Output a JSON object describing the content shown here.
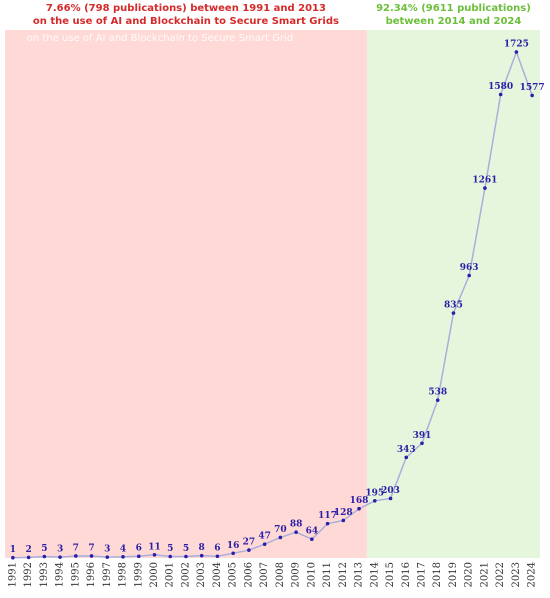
{
  "chart_data": {
    "type": "line",
    "categories": [
      "1991",
      "1992",
      "1993",
      "1994",
      "1995",
      "1996",
      "1997",
      "1998",
      "1999",
      "2000",
      "2001",
      "2002",
      "2003",
      "2004",
      "2005",
      "2006",
      "2007",
      "2008",
      "2009",
      "2010",
      "2011",
      "2012",
      "2013",
      "2014",
      "2015",
      "2016",
      "2017",
      "2018",
      "2019",
      "2020",
      "2021",
      "2022",
      "2023",
      "2024"
    ],
    "values": [
      1,
      2,
      5,
      3,
      7,
      7,
      3,
      4,
      6,
      11,
      5,
      5,
      8,
      6,
      16,
      27,
      47,
      70,
      88,
      64,
      117,
      128,
      168,
      195,
      203,
      343,
      391,
      538,
      835,
      963,
      1261,
      1580,
      1725,
      1577
    ],
    "color": "#a9aedb",
    "marker_color": "#2a1fa8",
    "ylim": [
      0,
      1800
    ],
    "regions": [
      {
        "from": "1991",
        "to": "2013",
        "color": "#ffd9d6",
        "text_color": "#d62a2a",
        "text": [
          "7.66% (798 publications) between 1991 and 2013",
          "on the use of AI and Blockchain to Secure Smart Grids"
        ]
      },
      {
        "from": "2014",
        "to": "2024",
        "color": "#e6f6dd",
        "text_color": "#6cbf3a",
        "text": [
          "92.34% (9611 publications)",
          "between 2014 and 2024"
        ]
      }
    ],
    "watermark": "on the use of AI and Blockchain to Secure Smart Grid"
  }
}
